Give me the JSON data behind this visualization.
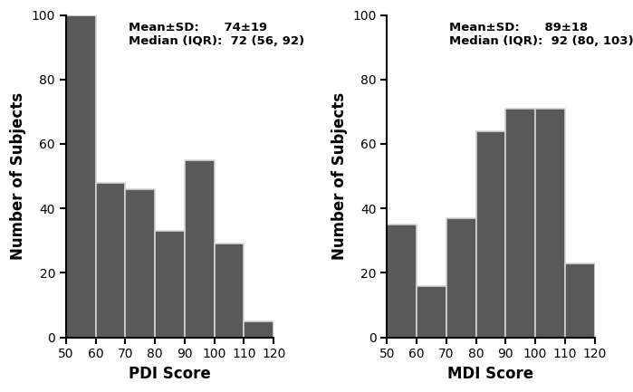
{
  "pdi_values": [
    100,
    48,
    46,
    33,
    55,
    29,
    5
  ],
  "mdi_values": [
    35,
    16,
    37,
    64,
    71,
    71,
    23
  ],
  "bin_edges": [
    50,
    60,
    70,
    80,
    90,
    100,
    110,
    120
  ],
  "bar_color": "#595959",
  "bar_edgecolor": "#d4d4d4",
  "ylim": [
    0,
    100
  ],
  "yticks": [
    0,
    20,
    40,
    60,
    80,
    100
  ],
  "xlim": [
    50,
    120
  ],
  "xticks": [
    50,
    60,
    70,
    80,
    90,
    100,
    110,
    120
  ],
  "xlabel_pdi": "PDI Score",
  "xlabel_mdi": "MDI Score",
  "ylabel": "Number of Subjects",
  "pdi_stats_line1": "Mean±SD:      74±19",
  "pdi_stats_line2": "Median (IQR):  72 (56, 92)",
  "mdi_stats_line1": "Mean±SD:      89±18",
  "mdi_stats_line2": "Median (IQR):  92 (80, 103)",
  "stats_fontsize": 9.5,
  "label_fontsize": 12,
  "tick_fontsize": 10,
  "background_color": "#ffffff",
  "bar_linewidth": 1.2,
  "spine_linewidth": 1.5,
  "figsize": [
    6.99,
    4.33
  ],
  "dpi": 100
}
